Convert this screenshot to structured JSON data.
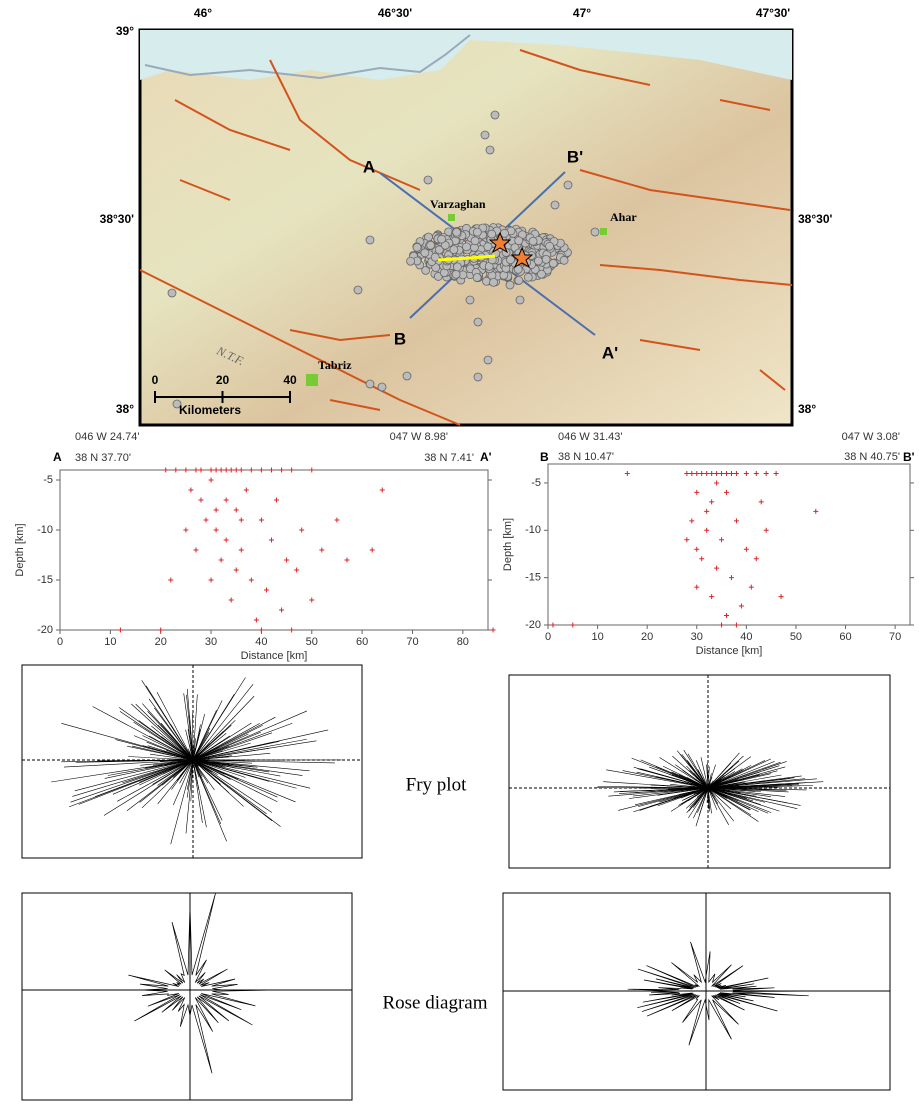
{
  "map": {
    "lon_ticks": [
      "46°",
      "46°30'",
      "47°",
      "47°30'"
    ],
    "lat_ticks": [
      "39°",
      "38°30'",
      "38°"
    ],
    "places": [
      "Varzaghan",
      "Ahar",
      "Tabriz"
    ],
    "fault": "N.T.F.",
    "profile_labels": [
      "A",
      "A'",
      "B",
      "B'"
    ],
    "scale_ticks": [
      0,
      20,
      40
    ],
    "scale_unit": "Kilometers"
  },
  "chart_data": [
    {
      "type": "scatter",
      "start_label": "A",
      "end_label": "A'",
      "start_lon": "046 W 24.74'",
      "start_lat": "38 N 37.70'",
      "end_lon": "047 W 8.98'",
      "end_lat": "38 N 7.41'",
      "x_label": "Distance [km]",
      "y_label": "Depth [km]",
      "xlim": [
        0,
        85
      ],
      "ylim": [
        -20,
        -4
      ],
      "xticks": [
        0,
        10,
        20,
        30,
        40,
        50,
        60,
        70,
        80
      ],
      "yticks": [
        -5,
        -10,
        -15,
        -20
      ],
      "series": [
        {
          "color": "#d62728",
          "x": [
            21,
            23,
            25,
            27,
            28,
            30,
            31,
            32,
            33,
            34,
            35,
            36,
            38,
            40,
            42,
            44,
            46,
            50,
            26,
            30,
            33,
            35,
            31,
            29,
            37,
            40,
            42,
            36,
            32,
            27,
            45,
            38,
            41,
            34,
            30,
            44,
            39,
            47,
            50,
            55,
            57,
            62,
            64,
            22,
            20,
            12,
            86,
            48,
            25,
            43,
            36,
            33,
            28,
            46,
            40,
            52,
            35,
            31
          ],
          "values": [
            -4,
            -4,
            -4,
            -4,
            -4,
            -4,
            -4,
            -4,
            -4,
            -4,
            -4,
            -4,
            -4,
            -4,
            -4,
            -4,
            -4,
            -4,
            -6,
            -5,
            -7,
            -8,
            -10,
            -9,
            -6,
            -9,
            -11,
            -12,
            -13,
            -12,
            -13,
            -15,
            -16,
            -17,
            -15,
            -18,
            -19,
            -14,
            -17,
            -9,
            -13,
            -12,
            -6,
            -15,
            -20,
            -20,
            -20,
            -10,
            -10,
            -7,
            -9,
            -11,
            -7,
            -20,
            -20,
            -12,
            -14,
            -8
          ]
        }
      ]
    },
    {
      "type": "scatter",
      "start_label": "B",
      "end_label": "B'",
      "start_lon": "046 W 31.43'",
      "start_lat": "38 N 10.47'",
      "end_lon": "047 W 3.08'",
      "end_lat": "38 N 40.75'",
      "x_label": "Distance [km]",
      "y_label": "Depth [km]",
      "xlim": [
        0,
        73
      ],
      "ylim": [
        -20,
        -3
      ],
      "xticks": [
        0,
        10,
        20,
        30,
        40,
        50,
        60,
        70
      ],
      "yticks": [
        -5,
        -10,
        -15,
        -20
      ],
      "series": [
        {
          "color": "#d62728",
          "x": [
            28,
            29,
            30,
            31,
            32,
            33,
            34,
            35,
            36,
            37,
            38,
            40,
            42,
            44,
            46,
            16,
            30,
            33,
            36,
            29,
            32,
            35,
            38,
            40,
            31,
            34,
            37,
            30,
            33,
            39,
            36,
            42,
            44,
            28,
            47,
            54,
            1,
            5,
            35,
            38,
            41,
            32,
            43,
            30,
            34
          ],
          "values": [
            -4,
            -4,
            -4,
            -4,
            -4,
            -4,
            -4,
            -4,
            -4,
            -4,
            -4,
            -4,
            -4,
            -4,
            -4,
            -4,
            -6,
            -7,
            -6,
            -9,
            -10,
            -11,
            -9,
            -12,
            -13,
            -14,
            -15,
            -16,
            -17,
            -18,
            -19,
            -13,
            -10,
            -11,
            -17,
            -8,
            -20,
            -20,
            -20,
            -20,
            -16,
            -8,
            -7,
            -12,
            -5
          ]
        }
      ]
    }
  ],
  "captions": [
    "Fry plot",
    "Rose diagram"
  ]
}
